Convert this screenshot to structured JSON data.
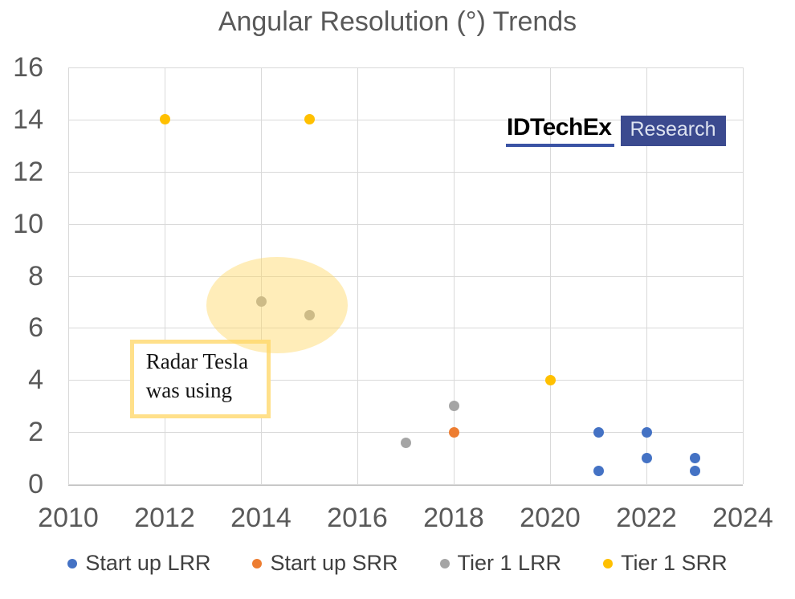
{
  "chart_data": {
    "type": "scatter",
    "title": "Angular Resolution (°) Trends",
    "xlabel": "",
    "ylabel": "",
    "x_range": [
      2010,
      2024
    ],
    "y_range": [
      0,
      16
    ],
    "x_ticks": [
      2010,
      2012,
      2014,
      2016,
      2018,
      2020,
      2022,
      2024
    ],
    "y_ticks": [
      0,
      2,
      4,
      6,
      8,
      10,
      12,
      14,
      16
    ],
    "grid": true,
    "legend_position": "bottom",
    "series": [
      {
        "name": "Start up LRR",
        "color": "#4472C4",
        "points": [
          [
            2021,
            2
          ],
          [
            2021,
            0.5
          ],
          [
            2022,
            2
          ],
          [
            2022,
            1
          ],
          [
            2023,
            1
          ],
          [
            2023,
            0.5
          ]
        ]
      },
      {
        "name": "Start up SRR",
        "color": "#ED7D31",
        "points": [
          [
            2018,
            2
          ]
        ]
      },
      {
        "name": "Tier 1 LRR",
        "color": "#A5A5A5",
        "points": [
          [
            2014,
            7
          ],
          [
            2015,
            6.5
          ],
          [
            2017,
            1.6
          ],
          [
            2018,
            3
          ]
        ]
      },
      {
        "name": "Tier 1 SRR",
        "color": "#FFC000",
        "points": [
          [
            2012,
            14
          ],
          [
            2015,
            14
          ],
          [
            2020,
            4
          ]
        ]
      }
    ],
    "annotation": {
      "text": "Radar Tesla was using",
      "box": {
        "x1": 2011.28,
        "x2": 2014.2,
        "y1": 2.53,
        "y2": 5.55
      },
      "box_border_color": "#FFE08A",
      "ellipse": {
        "cx": 2014.33,
        "cy": 6.86,
        "rx": 1.47,
        "ry": 1.85
      },
      "ellipse_fill_color": "rgba(255, 214, 100, 0.45)"
    },
    "colors": {
      "gridline": "#D9D9D9",
      "axis_line": "#BFBFBF",
      "tick_label": "#595959",
      "title": "#595959",
      "legend_text": "#404040"
    }
  },
  "logo": {
    "brand": "IDTechEx",
    "suffix": "Research",
    "underline_color": "#3A53A4",
    "badge_color": "#3B4A8F"
  }
}
